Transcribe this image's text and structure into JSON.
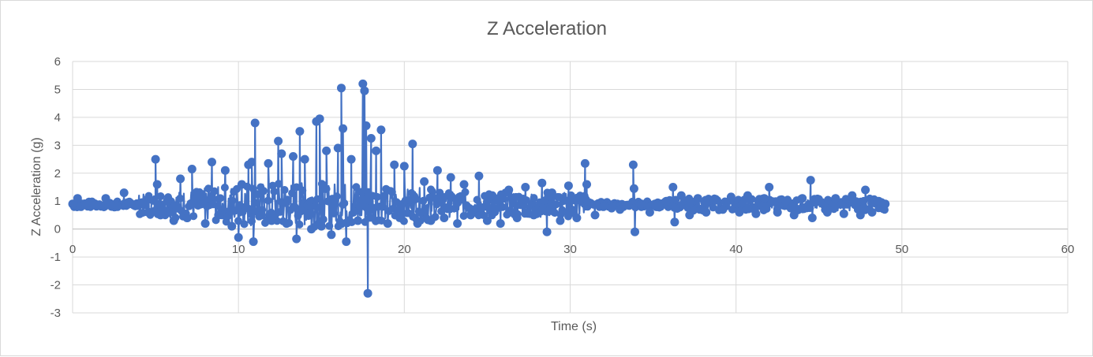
{
  "chart_data": {
    "type": "scatter",
    "title": "Z Acceleration",
    "xlabel": "Time (s)",
    "ylabel": "Z Acceleration (g)",
    "xlim": [
      0,
      60
    ],
    "ylim": [
      -3,
      6
    ],
    "x_ticks": [
      "0",
      "10",
      "20",
      "30",
      "40",
      "50",
      "60"
    ],
    "y_ticks": [
      "6",
      "5",
      "4",
      "3",
      "2",
      "1",
      "0",
      "-1",
      "-2",
      "-3"
    ],
    "grid": true,
    "legend": "none",
    "series_color": "#4472c4",
    "series": [
      {
        "x": [
          0,
          0.3,
          0.5,
          0.8,
          1.2,
          1.6,
          2.0,
          2.3,
          2.7,
          3.1,
          3.4,
          3.8,
          4.2,
          4.6,
          5.0,
          5.1,
          5.3,
          5.7,
          6.1,
          6.5,
          6.9,
          7.2,
          7.6,
          8.0,
          8.4,
          8.8,
          9.2,
          9.6,
          10.0,
          10.2,
          10.6,
          10.8,
          10.9,
          11.0,
          11.4,
          11.8,
          12.0,
          12.4,
          12.6,
          12.9,
          13.3,
          13.5,
          13.7,
          14.0,
          14.4,
          14.7,
          14.9,
          15.0,
          15.3,
          15.6,
          16.0,
          16.2,
          16.3,
          16.5,
          16.8,
          17.2,
          17.5,
          17.6,
          17.7,
          17.8,
          18.0,
          18.3,
          18.6,
          19.0,
          19.4,
          19.8,
          20.0,
          20.5,
          20.8,
          21.2,
          21.6,
          22.0,
          22.4,
          22.8,
          23.2,
          23.6,
          24.0,
          24.5,
          25.0,
          25.3,
          25.8,
          26.3,
          26.8,
          27.3,
          27.8,
          28.3,
          28.6,
          28.9,
          29.4,
          29.9,
          30.4,
          30.9,
          31.0,
          31.5,
          32.0,
          32.5,
          33.0,
          33.5,
          33.8,
          33.85,
          33.9,
          34.3,
          34.8,
          35.3,
          35.8,
          36.2,
          36.3,
          36.7,
          37.2,
          37.7,
          38.2,
          38.7,
          39.2,
          39.7,
          40.2,
          40.7,
          41.2,
          41.7,
          42.0,
          42.5,
          43.0,
          43.5,
          44.0,
          44.5,
          44.6,
          45.0,
          45.5,
          46.0,
          46.5,
          47.0,
          47.5,
          47.8,
          48.2,
          48.6,
          49.0
        ],
        "y": [
          0.9,
          1.1,
          0.8,
          0.9,
          0.95,
          0.85,
          1.1,
          0.9,
          0.8,
          1.3,
          0.9,
          0.85,
          0.95,
          0.6,
          2.5,
          1.6,
          0.5,
          1.0,
          0.3,
          1.8,
          0.4,
          2.15,
          1.2,
          0.2,
          2.4,
          0.5,
          2.1,
          0.1,
          -0.3,
          1.6,
          2.3,
          2.4,
          -0.45,
          3.8,
          0.5,
          2.35,
          0.3,
          3.15,
          2.7,
          0.2,
          2.6,
          -0.35,
          3.5,
          2.5,
          0.0,
          3.85,
          3.95,
          0.1,
          2.8,
          -0.2,
          2.9,
          5.05,
          3.6,
          -0.45,
          2.5,
          0.3,
          5.2,
          4.95,
          3.7,
          -2.3,
          3.25,
          2.8,
          3.55,
          0.2,
          2.3,
          0.4,
          2.25,
          3.05,
          0.2,
          1.7,
          0.3,
          2.1,
          0.4,
          1.85,
          0.2,
          1.6,
          0.5,
          1.9,
          0.3,
          1.2,
          0.2,
          1.4,
          0.4,
          1.5,
          0.5,
          1.65,
          -0.1,
          1.3,
          0.3,
          1.55,
          0.4,
          2.35,
          1.6,
          0.5,
          0.8,
          0.75,
          0.7,
          0.85,
          2.3,
          1.45,
          -0.1,
          0.9,
          0.6,
          0.8,
          1.0,
          1.5,
          0.25,
          1.2,
          0.5,
          1.1,
          0.6,
          1.05,
          0.7,
          1.15,
          0.6,
          1.2,
          0.55,
          1.1,
          1.5,
          0.6,
          1.0,
          0.5,
          1.1,
          1.75,
          0.4,
          1.0,
          0.6,
          1.1,
          0.55,
          1.2,
          0.5,
          1.4,
          0.6,
          1.0,
          0.9
        ]
      }
    ]
  }
}
